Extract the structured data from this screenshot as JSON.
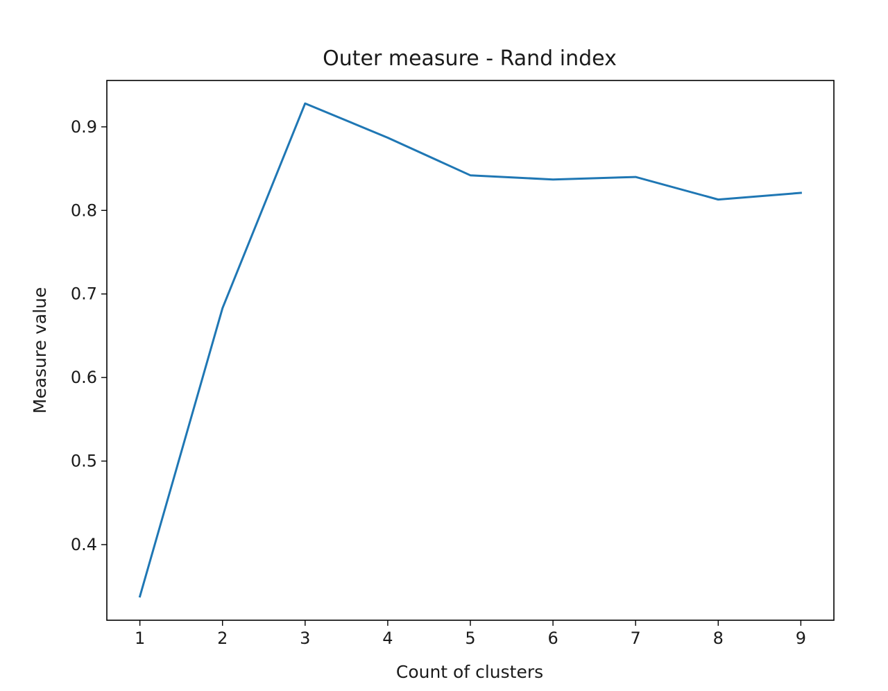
{
  "chart_data": {
    "type": "line",
    "title": "Outer measure - Rand index",
    "xlabel": "Count of clusters",
    "ylabel": "Measure value",
    "x": [
      1,
      2,
      3,
      4,
      5,
      6,
      7,
      8,
      9
    ],
    "series": [
      {
        "values": [
          0.338,
          0.683,
          0.928,
          0.887,
          0.842,
          0.837,
          0.84,
          0.813,
          0.821
        ],
        "color": "#1f77b4"
      }
    ],
    "xticks": [
      "1",
      "2",
      "3",
      "4",
      "5",
      "6",
      "7",
      "8",
      "9"
    ],
    "yticks": [
      "0.4",
      "0.5",
      "0.6",
      "0.7",
      "0.8",
      "0.9"
    ],
    "xlim": [
      0.6,
      9.4
    ],
    "ylim": [
      0.3095,
      0.9555
    ],
    "grid": false,
    "legend": "none"
  }
}
